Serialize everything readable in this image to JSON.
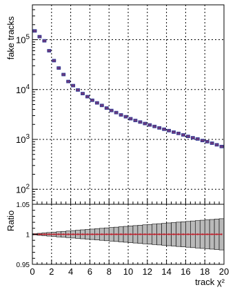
{
  "chart_data": {
    "type": "scatter",
    "xlabel": "track χ²",
    "xlim": [
      0,
      20
    ],
    "x_ticks": [
      "0",
      "2",
      "4",
      "6",
      "8",
      "10",
      "12",
      "14",
      "16",
      "18",
      "20"
    ],
    "grid": true,
    "top": {
      "ylabel": "fake tracks",
      "yscale": "log",
      "ylim": [
        50,
        500000
      ],
      "y_ticks": [
        {
          "value": 100,
          "base": "10",
          "exp": "2"
        },
        {
          "value": 1000,
          "base": "10",
          "exp": "3"
        },
        {
          "value": 10000,
          "base": "10",
          "exp": "4"
        },
        {
          "value": 100000,
          "base": "10",
          "exp": "5"
        }
      ],
      "series": [
        {
          "color": "#6a3a7d",
          "marker_color": "#2a3a9a",
          "error_color": "#c0202c",
          "x": [
            0.25,
            0.75,
            1.25,
            1.75,
            2.25,
            2.75,
            3.25,
            3.75,
            4.25,
            4.75,
            5.25,
            5.75,
            6.25,
            6.75,
            7.25,
            7.75,
            8.25,
            8.75,
            9.25,
            9.75,
            10.25,
            10.75,
            11.25,
            11.75,
            12.25,
            12.75,
            13.25,
            13.75,
            14.25,
            14.75,
            15.25,
            15.75,
            16.25,
            16.75,
            17.25,
            17.75,
            18.25,
            18.75,
            19.25,
            19.75
          ],
          "y": [
            150000,
            115000,
            95000,
            60000,
            38000,
            27000,
            20000,
            14500,
            12000,
            9800,
            8300,
            7200,
            6100,
            5400,
            4800,
            4250,
            3800,
            3450,
            3100,
            2850,
            2600,
            2400,
            2230,
            2080,
            1950,
            1820,
            1700,
            1600,
            1500,
            1400,
            1320,
            1230,
            1150,
            1080,
            1020,
            950,
            900,
            840,
            780,
            720
          ]
        }
      ]
    },
    "ratio": {
      "ylabel": "Ratio",
      "ylim": [
        0.95,
        1.05
      ],
      "y_ticks": [
        {
          "value": 0.95,
          "label": "0.95"
        },
        {
          "value": 1,
          "label": "1"
        },
        {
          "value": 1.05,
          "label": "1.05"
        }
      ],
      "x": [
        0.25,
        0.75,
        1.25,
        1.75,
        2.25,
        2.75,
        3.25,
        3.75,
        4.25,
        4.75,
        5.25,
        5.75,
        6.25,
        6.75,
        7.25,
        7.75,
        8.25,
        8.75,
        9.25,
        9.75,
        10.25,
        10.75,
        11.25,
        11.75,
        12.25,
        12.75,
        13.25,
        13.75,
        14.25,
        14.75,
        15.25,
        15.75,
        16.25,
        16.75,
        17.25,
        17.75,
        18.25,
        18.75,
        19.25,
        19.75
      ],
      "values": [
        1,
        1,
        1,
        1,
        1,
        1,
        1,
        1,
        1,
        1,
        1,
        1,
        1,
        1,
        1,
        1,
        1,
        1,
        1,
        1,
        1,
        1,
        1,
        1,
        1,
        1,
        1,
        1,
        1,
        1,
        1,
        1,
        1,
        1,
        1,
        1,
        1,
        1,
        1,
        1
      ],
      "band_halfwidth": [
        0.001,
        0.0017,
        0.0023,
        0.003,
        0.0036,
        0.0043,
        0.0049,
        0.0055,
        0.0062,
        0.0068,
        0.0075,
        0.0081,
        0.0087,
        0.0094,
        0.01,
        0.0107,
        0.0113,
        0.0119,
        0.0126,
        0.0132,
        0.0139,
        0.0145,
        0.0151,
        0.0158,
        0.0164,
        0.0171,
        0.0177,
        0.0183,
        0.019,
        0.0196,
        0.0203,
        0.0209,
        0.0215,
        0.0222,
        0.0228,
        0.0235,
        0.0241,
        0.0247,
        0.0254,
        0.026
      ],
      "band_color": "#b9b9b9",
      "line_color": "#c0202c"
    }
  }
}
